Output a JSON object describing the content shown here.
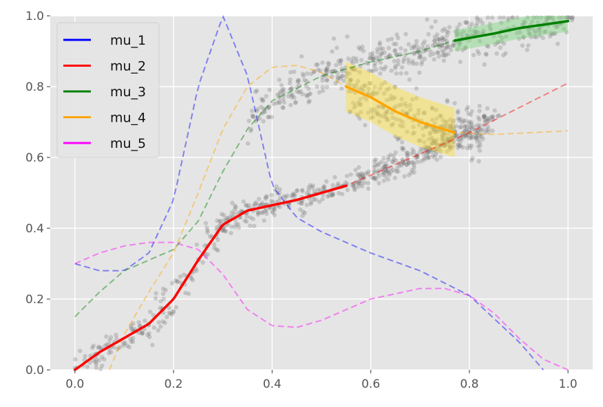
{
  "chart_data": {
    "type": "line",
    "xlim": [
      -0.05,
      1.05
    ],
    "ylim": [
      0.0,
      1.0
    ],
    "grid": true,
    "background": "#e5e5e5",
    "legend_position": "top-left",
    "x_ticks": [
      0.0,
      0.2,
      0.4,
      0.6,
      0.8,
      1.0
    ],
    "x_tick_labels": [
      "0.0",
      "0.2",
      "0.4",
      "0.6",
      "0.8",
      "1.0"
    ],
    "y_ticks": [
      0.0,
      0.2,
      0.4,
      0.6,
      0.8,
      1.0
    ],
    "y_tick_labels": [
      "0.0",
      "0.2",
      "0.4",
      "0.6",
      "0.8",
      "1.0"
    ],
    "series": [
      {
        "name": "mu_1",
        "color": "#0000ff",
        "style": "dashed",
        "x": [
          0.0,
          0.05,
          0.1,
          0.15,
          0.2,
          0.25,
          0.3,
          0.35,
          0.4,
          0.45,
          0.5,
          0.6,
          0.7,
          0.8,
          0.9,
          0.95
        ],
        "y": [
          0.3,
          0.28,
          0.28,
          0.33,
          0.48,
          0.8,
          1.0,
          0.83,
          0.52,
          0.43,
          0.39,
          0.33,
          0.28,
          0.21,
          0.08,
          0.0
        ]
      },
      {
        "name": "mu_2",
        "color": "#ff0000",
        "style": "dashed",
        "x": [
          0.0,
          0.05,
          0.1,
          0.15,
          0.2,
          0.25,
          0.3,
          0.35,
          0.4,
          0.45,
          0.5,
          0.55,
          0.6,
          0.7,
          0.8,
          0.9,
          1.0
        ],
        "y": [
          0.0,
          0.05,
          0.09,
          0.13,
          0.2,
          0.31,
          0.41,
          0.45,
          0.465,
          0.48,
          0.5,
          0.52,
          0.55,
          0.61,
          0.67,
          0.74,
          0.81
        ],
        "solid_range": [
          0.0,
          0.55
        ]
      },
      {
        "name": "mu_3",
        "color": "#008000",
        "style": "dashed",
        "x": [
          0.0,
          0.05,
          0.1,
          0.15,
          0.2,
          0.25,
          0.3,
          0.35,
          0.4,
          0.5,
          0.6,
          0.7,
          0.77,
          0.85,
          0.9,
          1.0
        ],
        "y": [
          0.15,
          0.22,
          0.28,
          0.31,
          0.34,
          0.42,
          0.56,
          0.68,
          0.76,
          0.83,
          0.87,
          0.9,
          0.93,
          0.95,
          0.965,
          0.985
        ],
        "solid_range": [
          0.77,
          1.0
        ],
        "band_range": [
          0.77,
          1.0
        ],
        "band_halfwidth": 0.03
      },
      {
        "name": "mu_4",
        "color": "#ffa500",
        "style": "dashed",
        "x": [
          0.07,
          0.1,
          0.15,
          0.2,
          0.25,
          0.3,
          0.35,
          0.4,
          0.45,
          0.5,
          0.55,
          0.6,
          0.65,
          0.7,
          0.77,
          0.85,
          1.0
        ],
        "y": [
          0.0,
          0.1,
          0.22,
          0.33,
          0.5,
          0.68,
          0.8,
          0.855,
          0.86,
          0.84,
          0.8,
          0.77,
          0.73,
          0.7,
          0.67,
          0.665,
          0.675
        ],
        "solid_range": [
          0.55,
          0.77
        ],
        "band_range": [
          0.55,
          0.77
        ],
        "band_halfwidth": 0.07
      },
      {
        "name": "mu_5",
        "color": "#ff00ff",
        "style": "dashed",
        "x": [
          0.0,
          0.05,
          0.1,
          0.15,
          0.2,
          0.25,
          0.3,
          0.35,
          0.4,
          0.45,
          0.5,
          0.6,
          0.7,
          0.75,
          0.8,
          0.85,
          0.9,
          0.95,
          1.0
        ],
        "y": [
          0.3,
          0.33,
          0.35,
          0.36,
          0.36,
          0.34,
          0.27,
          0.17,
          0.125,
          0.12,
          0.14,
          0.2,
          0.23,
          0.23,
          0.21,
          0.16,
          0.09,
          0.03,
          0.0
        ]
      }
    ]
  }
}
